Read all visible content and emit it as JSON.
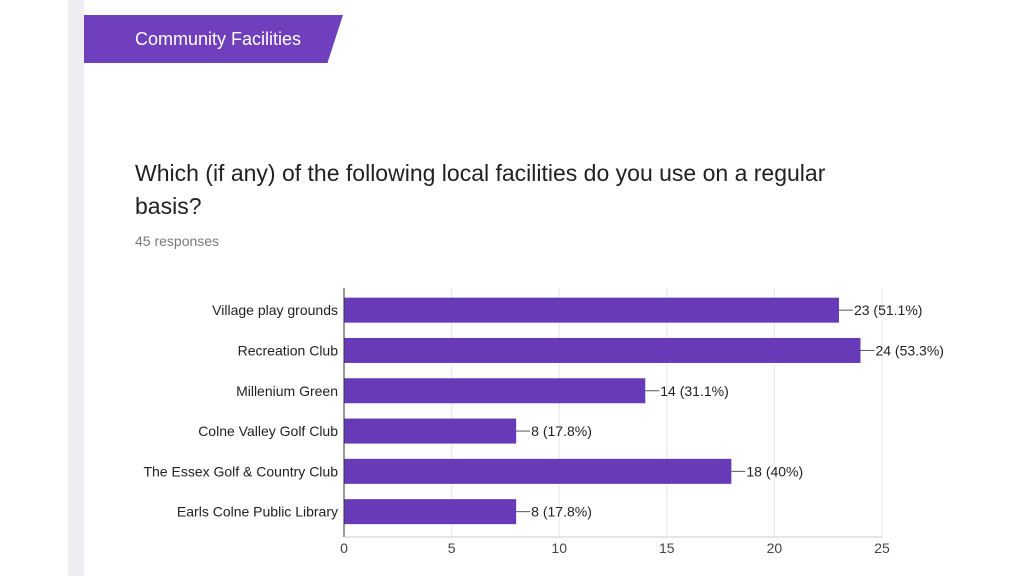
{
  "section": {
    "title": "Community Facilities"
  },
  "question": {
    "title": "Which (if any) of the following local facilities do you use on a regular basis?",
    "responses": "45 responses"
  },
  "colors": {
    "accent": "#6f3fbe",
    "bar": "#673ab7",
    "text": "#202124",
    "muted": "#777a7e"
  },
  "chart_data": {
    "type": "bar",
    "orientation": "horizontal",
    "categories": [
      "Village play grounds",
      "Recreation Club",
      "Millenium Green",
      "Colne Valley Golf Club",
      "The Essex Golf & Country Club",
      "Earls Colne Public Library"
    ],
    "values": [
      23,
      24,
      14,
      8,
      18,
      8
    ],
    "data_labels": [
      "23 (51.1%)",
      "24 (53.3%)",
      "14 (31.1%)",
      "8 (17.8%)",
      "18 (40%)",
      "8 (17.8%)"
    ],
    "xticks": [
      "0",
      "5",
      "10",
      "15",
      "20",
      "25"
    ],
    "xlim": [
      0,
      25
    ],
    "grid": true,
    "title": "",
    "xlabel": "",
    "ylabel": ""
  }
}
